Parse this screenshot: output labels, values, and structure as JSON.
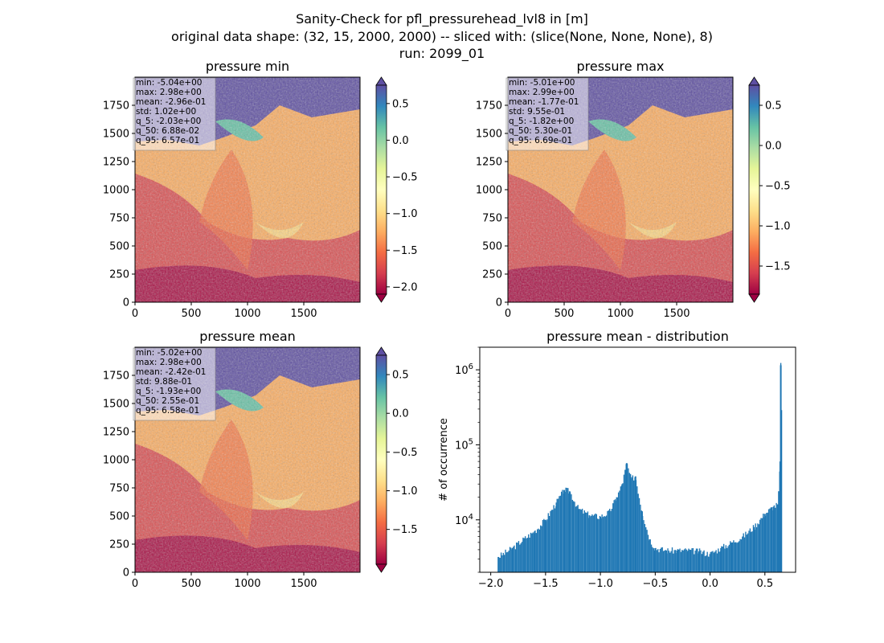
{
  "figure": {
    "title_lines": [
      "Sanity-Check for pfl_pressurehead_lvl8 in [m]",
      "original data shape: (32, 15, 2000, 2000) -- sliced with: (slice(None, None, None), 8)",
      "run: 2099_01"
    ]
  },
  "colormap": {
    "name": "Spectral",
    "stops": [
      "#9e0142",
      "#d53e4f",
      "#f46d43",
      "#fdae61",
      "#fee08b",
      "#ffffbf",
      "#e6f598",
      "#abdda4",
      "#66c2a5",
      "#3288bd",
      "#5e4fa2"
    ]
  },
  "maps": [
    {
      "title": "pressure min",
      "x_ticks": [
        "0",
        "500",
        "1000",
        "1500"
      ],
      "y_ticks": [
        "0",
        "250",
        "500",
        "750",
        "1000",
        "1250",
        "1500",
        "1750"
      ],
      "x_range": [
        0,
        2000
      ],
      "y_range": [
        0,
        2000
      ],
      "stats": [
        "min: -5.04e+00",
        "max: 2.98e+00",
        "mean: -2.96e-01",
        "std: 1.02e+00",
        "q_5: -2.03e+00",
        "q_50: 6.88e-02",
        "q_95: 6.57e-01"
      ],
      "colorbar": {
        "vmin": -2.1,
        "vmax": 0.75,
        "ticks": [
          0.5,
          0.0,
          -0.5,
          -1.0,
          -1.5,
          -2.0
        ],
        "tick_labels": [
          "0.5",
          "0.0",
          "−0.5",
          "−1.0",
          "−1.5",
          "−2.0"
        ]
      }
    },
    {
      "title": "pressure max",
      "x_ticks": [
        "0",
        "500",
        "1000",
        "1500"
      ],
      "y_ticks": [
        "0",
        "250",
        "500",
        "750",
        "1000",
        "1250",
        "1500",
        "1750"
      ],
      "x_range": [
        0,
        2000
      ],
      "y_range": [
        0,
        2000
      ],
      "stats": [
        "min: -5.01e+00",
        "max: 2.99e+00",
        "mean: -1.77e-01",
        "std: 9.55e-01",
        "q_5: -1.82e+00",
        "q_50: 5.30e-01",
        "q_95: 6.69e-01"
      ],
      "colorbar": {
        "vmin": -1.85,
        "vmax": 0.75,
        "ticks": [
          0.5,
          0.0,
          -0.5,
          -1.0,
          -1.5
        ],
        "tick_labels": [
          "0.5",
          "0.0",
          "−0.5",
          "−1.0",
          "−1.5"
        ]
      }
    },
    {
      "title": "pressure mean",
      "x_ticks": [
        "0",
        "500",
        "1000",
        "1500"
      ],
      "y_ticks": [
        "0",
        "250",
        "500",
        "750",
        "1000",
        "1250",
        "1500",
        "1750"
      ],
      "x_range": [
        0,
        2000
      ],
      "y_range": [
        0,
        2000
      ],
      "stats": [
        "min: -5.02e+00",
        "max: 2.98e+00",
        "mean: -2.42e-01",
        "std: 9.88e-01",
        "q_5: -1.93e+00",
        "q_50: 2.55e-01",
        "q_95: 6.58e-01"
      ],
      "colorbar": {
        "vmin": -1.95,
        "vmax": 0.75,
        "ticks": [
          0.5,
          0.0,
          -0.5,
          -1.0,
          -1.5
        ],
        "tick_labels": [
          "0.5",
          "0.0",
          "−0.5",
          "−1.0",
          "−1.5"
        ]
      }
    }
  ],
  "chart_data": {
    "type": "bar",
    "title": "pressure mean - distribution",
    "xlabel": "",
    "ylabel": "# of occurrence",
    "yscale": "log",
    "xlim": [
      -2.1,
      0.78
    ],
    "ylim": [
      2000,
      2000000
    ],
    "x_ticks": [
      -2.0,
      -1.5,
      -1.0,
      -0.5,
      0.0,
      0.5
    ],
    "x_tick_labels": [
      "−2.0",
      "−1.5",
      "−1.0",
      "−0.5",
      "0.0",
      "0.5"
    ],
    "y_ticks": [
      10000,
      100000,
      1000000
    ],
    "y_tick_labels": [
      "10^4",
      "10^5",
      "10^6"
    ],
    "bar_color": "#1f77b4",
    "bin_width": 0.02,
    "points": [
      [
        -1.93,
        3200
      ],
      [
        -1.8,
        4200
      ],
      [
        -1.7,
        5500
      ],
      [
        -1.6,
        7000
      ],
      [
        -1.5,
        10000
      ],
      [
        -1.4,
        17000
      ],
      [
        -1.33,
        25000
      ],
      [
        -1.28,
        24000
      ],
      [
        -1.2,
        14000
      ],
      [
        -1.1,
        11500
      ],
      [
        -1.0,
        11000
      ],
      [
        -0.92,
        12500
      ],
      [
        -0.85,
        20000
      ],
      [
        -0.8,
        30000
      ],
      [
        -0.76,
        57000
      ],
      [
        -0.72,
        35000
      ],
      [
        -0.68,
        38000
      ],
      [
        -0.62,
        13000
      ],
      [
        -0.55,
        5500
      ],
      [
        -0.5,
        4200
      ],
      [
        -0.4,
        3900
      ],
      [
        -0.3,
        3900
      ],
      [
        -0.2,
        3900
      ],
      [
        -0.1,
        3800
      ],
      [
        0.0,
        3500
      ],
      [
        0.1,
        4200
      ],
      [
        0.2,
        5000
      ],
      [
        0.3,
        6000
      ],
      [
        0.4,
        8000
      ],
      [
        0.5,
        12000
      ],
      [
        0.58,
        15000
      ],
      [
        0.62,
        16000
      ],
      [
        0.64,
        60000
      ],
      [
        0.645,
        1150000
      ],
      [
        0.65,
        290000
      ],
      [
        0.655,
        2000
      ]
    ]
  }
}
